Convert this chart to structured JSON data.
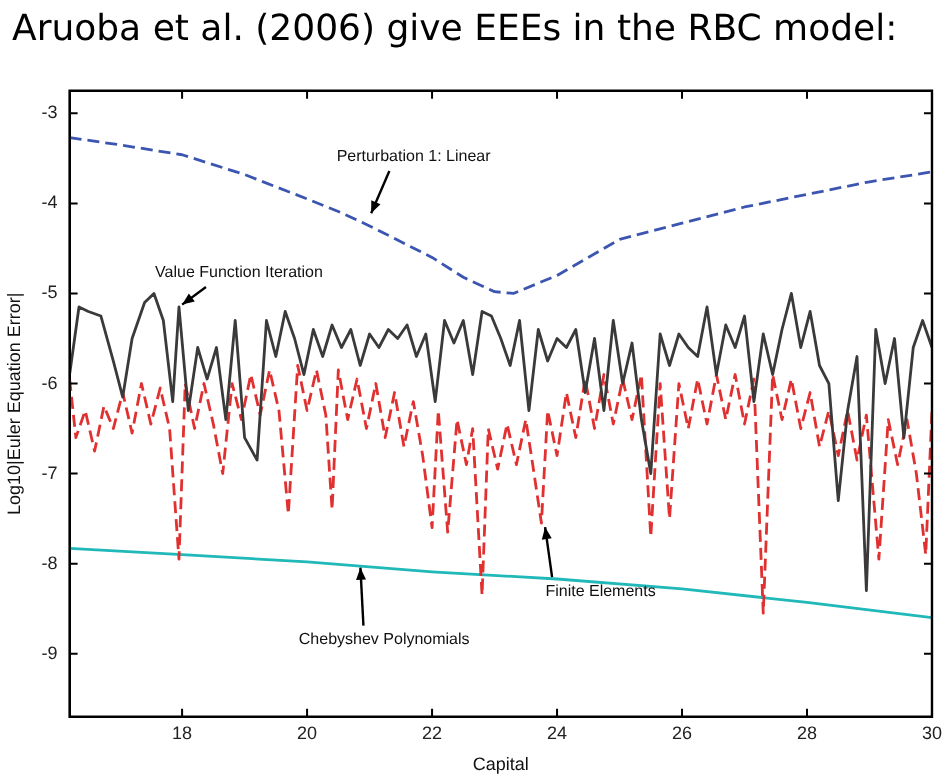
{
  "chart_data": {
    "type": "line",
    "title": "Aruoba et al. (2006) give EEEs in the RBC model:",
    "xlabel": "Capital",
    "ylabel": "Log10|Euler Equation Error|",
    "xlim": [
      16.2,
      30
    ],
    "xticks": [
      18,
      20,
      22,
      24,
      26,
      28,
      30
    ],
    "ylim": [
      -9.7,
      -2.75
    ],
    "yticks": [
      -3,
      -4,
      -5,
      -6,
      -7,
      -8,
      -9
    ],
    "grid": false,
    "legend": false,
    "marker": "none",
    "series": [
      {
        "color": "#3b55b0",
        "line_style": "dashed",
        "x": [
          16.2,
          17,
          18,
          19,
          20,
          20.5,
          21,
          22,
          22.5,
          23,
          23.3,
          24,
          25,
          26,
          27,
          28,
          29,
          30
        ],
        "values": [
          -3.27,
          -3.35,
          -3.46,
          -3.68,
          -3.95,
          -4.09,
          -4.25,
          -4.6,
          -4.82,
          -4.98,
          -5.0,
          -4.8,
          -4.4,
          -4.22,
          -4.04,
          -3.9,
          -3.76,
          -3.65
        ]
      },
      {
        "color": "#3a3a3a",
        "line_style": "solid",
        "x": [
          16.2,
          16.35,
          16.5,
          16.7,
          16.9,
          17.05,
          17.2,
          17.4,
          17.55,
          17.7,
          17.85,
          17.95,
          18.1,
          18.25,
          18.4,
          18.55,
          18.7,
          18.85,
          19.0,
          19.2,
          19.35,
          19.5,
          19.65,
          19.8,
          19.95,
          20.1,
          20.25,
          20.4,
          20.55,
          20.7,
          20.85,
          21.0,
          21.15,
          21.3,
          21.45,
          21.6,
          21.75,
          21.9,
          22.05,
          22.2,
          22.35,
          22.5,
          22.65,
          22.8,
          22.95,
          23.1,
          23.25,
          23.4,
          23.55,
          23.7,
          23.85,
          24.0,
          24.15,
          24.3,
          24.45,
          24.6,
          24.75,
          24.9,
          25.05,
          25.2,
          25.35,
          25.5,
          25.65,
          25.8,
          25.95,
          26.1,
          26.25,
          26.4,
          26.55,
          26.7,
          26.85,
          27.0,
          27.15,
          27.3,
          27.45,
          27.6,
          27.75,
          27.9,
          28.05,
          28.2,
          28.35,
          28.5,
          28.65,
          28.8,
          28.95,
          29.1,
          29.25,
          29.4,
          29.55,
          29.7,
          29.85,
          30.0
        ],
        "values": [
          -5.9,
          -5.15,
          -5.2,
          -5.25,
          -5.75,
          -6.15,
          -5.5,
          -5.1,
          -5.0,
          -5.3,
          -6.2,
          -5.15,
          -6.3,
          -5.6,
          -5.95,
          -5.6,
          -6.4,
          -5.3,
          -6.6,
          -6.85,
          -5.3,
          -5.7,
          -5.2,
          -5.5,
          -5.9,
          -5.4,
          -5.7,
          -5.35,
          -5.6,
          -5.4,
          -5.8,
          -5.45,
          -5.6,
          -5.4,
          -5.5,
          -5.35,
          -5.7,
          -5.45,
          -6.2,
          -5.3,
          -5.55,
          -5.3,
          -5.9,
          -5.2,
          -5.25,
          -5.5,
          -5.8,
          -5.3,
          -6.3,
          -5.4,
          -5.75,
          -5.5,
          -5.6,
          -5.4,
          -6.1,
          -5.5,
          -6.3,
          -5.3,
          -6.0,
          -5.55,
          -6.4,
          -7.0,
          -5.45,
          -5.8,
          -5.45,
          -5.6,
          -5.7,
          -5.15,
          -5.9,
          -5.35,
          -5.6,
          -5.25,
          -6.2,
          -5.45,
          -5.9,
          -5.4,
          -5.0,
          -5.6,
          -5.2,
          -5.8,
          -6.0,
          -7.3,
          -6.3,
          -5.7,
          -8.3,
          -5.4,
          -6.0,
          -5.5,
          -6.6,
          -5.6,
          -5.3,
          -5.6
        ]
      },
      {
        "color": "#e03030",
        "line_style": "dashed",
        "x": [
          16.2,
          16.3,
          16.45,
          16.6,
          16.75,
          16.9,
          17.05,
          17.2,
          17.35,
          17.5,
          17.65,
          17.8,
          17.95,
          18.05,
          18.2,
          18.35,
          18.5,
          18.65,
          18.8,
          18.95,
          19.1,
          19.25,
          19.4,
          19.55,
          19.7,
          19.85,
          20.0,
          20.15,
          20.3,
          20.4,
          20.5,
          20.65,
          20.8,
          20.95,
          21.1,
          21.25,
          21.4,
          21.55,
          21.7,
          21.85,
          22.0,
          22.1,
          22.25,
          22.4,
          22.55,
          22.65,
          22.8,
          22.9,
          23.05,
          23.2,
          23.35,
          23.5,
          23.6,
          23.75,
          23.85,
          24.0,
          24.15,
          24.3,
          24.45,
          24.6,
          24.75,
          24.9,
          25.05,
          25.2,
          25.35,
          25.5,
          25.65,
          25.8,
          25.95,
          26.1,
          26.25,
          26.4,
          26.55,
          26.7,
          26.85,
          27.0,
          27.15,
          27.3,
          27.45,
          27.6,
          27.75,
          27.9,
          28.05,
          28.2,
          28.35,
          28.5,
          28.65,
          28.8,
          28.95,
          29.15,
          29.3,
          29.45,
          29.6,
          29.75,
          29.9,
          30.0
        ],
        "values": [
          -5.95,
          -6.6,
          -6.3,
          -6.75,
          -6.25,
          -6.5,
          -6.1,
          -6.55,
          -6.0,
          -6.45,
          -6.05,
          -6.5,
          -7.95,
          -6.0,
          -6.5,
          -6.0,
          -6.45,
          -7.0,
          -6.0,
          -6.4,
          -5.9,
          -6.35,
          -5.85,
          -6.3,
          -7.45,
          -5.8,
          -6.3,
          -5.85,
          -6.35,
          -7.4,
          -5.85,
          -6.4,
          -5.95,
          -6.5,
          -6.0,
          -6.6,
          -6.1,
          -6.7,
          -6.2,
          -6.8,
          -7.6,
          -6.3,
          -7.65,
          -6.4,
          -6.9,
          -6.5,
          -8.35,
          -6.5,
          -6.95,
          -6.45,
          -6.9,
          -6.4,
          -6.85,
          -7.55,
          -6.3,
          -6.8,
          -6.1,
          -6.6,
          -5.95,
          -6.5,
          -5.9,
          -6.45,
          -5.95,
          -6.4,
          -5.9,
          -7.7,
          -6.0,
          -7.5,
          -6.0,
          -6.5,
          -5.95,
          -6.45,
          -5.9,
          -6.4,
          -5.9,
          -6.45,
          -5.95,
          -8.55,
          -5.9,
          -6.4,
          -5.95,
          -6.5,
          -6.1,
          -6.7,
          -6.3,
          -6.8,
          -6.3,
          -6.85,
          -6.35,
          -7.95,
          -6.4,
          -6.9,
          -6.4,
          -7.0,
          -7.9,
          -6.3
        ]
      },
      {
        "color": "#20b8b8",
        "line_style": "solid",
        "x": [
          16.2,
          18,
          20,
          22,
          24,
          26,
          28,
          30
        ],
        "values": [
          -7.83,
          -7.9,
          -7.98,
          -8.09,
          -8.17,
          -8.28,
          -8.43,
          -8.6
        ]
      }
    ],
    "annotations": [
      {
        "text": "Perturbation 1: Linear",
        "x": 21.0,
        "y": -4.15
      },
      {
        "text": "Value Function Iteration",
        "x": 17.95,
        "y": -5.15
      },
      {
        "text": "Finite Elements",
        "x": 23.8,
        "y": -7.55
      },
      {
        "text": "Chebyshev Polynomials",
        "x": 20.85,
        "y": -8.0
      }
    ]
  }
}
